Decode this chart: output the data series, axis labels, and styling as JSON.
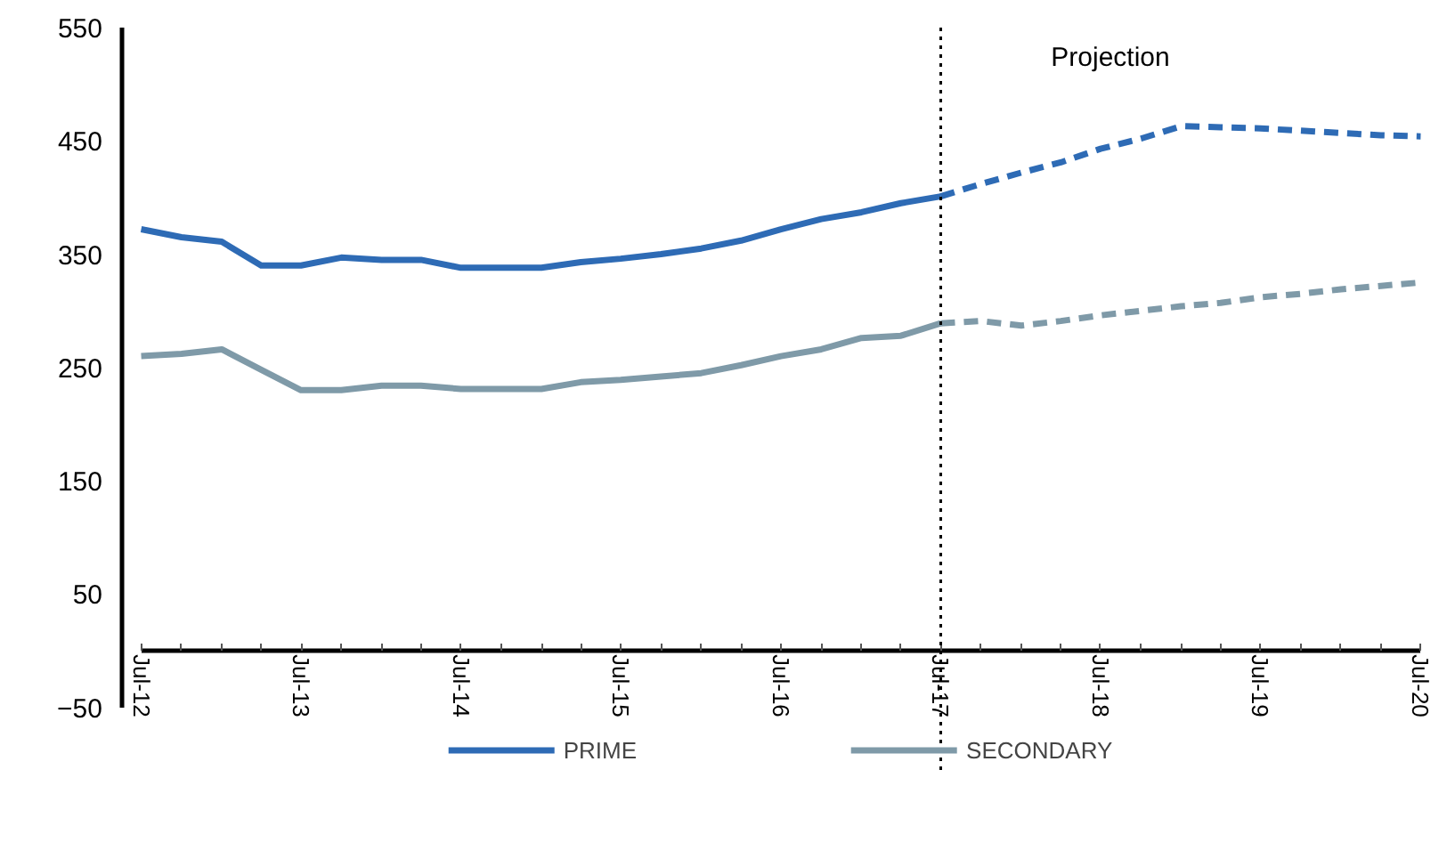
{
  "chart_data": {
    "type": "line",
    "x": [
      "2012-07",
      "2012-10",
      "2013-01",
      "2013-04",
      "2013-07",
      "2013-10",
      "2014-01",
      "2014-04",
      "2014-07",
      "2014-10",
      "2015-01",
      "2015-04",
      "2015-07",
      "2015-10",
      "2016-01",
      "2016-04",
      "2016-07",
      "2016-10",
      "2017-01",
      "2017-04",
      "2017-07"
    ],
    "series": [
      {
        "name": "PRIME",
        "color": "#2e6bb5",
        "line_style": "solid",
        "values": [
          372,
          365,
          361,
          340,
          340,
          347,
          345,
          345,
          338,
          338,
          338,
          343,
          346,
          350,
          355,
          362,
          372,
          381,
          387,
          395,
          401
        ]
      },
      {
        "name": "SECONDARY",
        "color": "#7f9aa8",
        "line_style": "solid",
        "values": [
          260,
          262,
          266,
          248,
          230,
          230,
          234,
          234,
          231,
          231,
          231,
          237,
          239,
          242,
          245,
          252,
          260,
          266,
          276,
          278,
          289
        ]
      },
      {
        "color": "#2e6bb5",
        "line_style": "dashed",
        "x": [
          "2017-07",
          "2017-10",
          "2018-01",
          "2018-04",
          "2018-07",
          "2018-10",
          "2019-01",
          "2019-04",
          "2019-07",
          "2019-10",
          "2020-01",
          "2020-04",
          "2020-07"
        ],
        "values": [
          401,
          412,
          422,
          431,
          443,
          452,
          463,
          462,
          461,
          459,
          457,
          455,
          454
        ]
      },
      {
        "color": "#7f9aa8",
        "line_style": "dashed",
        "x": [
          "2017-07",
          "2017-10",
          "2018-01",
          "2018-04",
          "2018-07",
          "2018-10",
          "2019-01",
          "2019-04",
          "2019-07",
          "2019-10",
          "2020-01",
          "2020-04",
          "2020-07"
        ],
        "values": [
          289,
          291,
          287,
          291,
          296,
          300,
          304,
          307,
          312,
          315,
          319,
          322,
          325
        ]
      }
    ],
    "ylim": [
      -50,
      550
    ],
    "yticks": [
      -50,
      50,
      150,
      250,
      350,
      450,
      550
    ],
    "xlim": [
      "2012-07",
      "2020-07"
    ],
    "xticks": [
      {
        "value": "2012-07",
        "label": "Jul-12"
      },
      {
        "value": "2012-10",
        "label": null
      },
      {
        "value": "2013-01",
        "label": null
      },
      {
        "value": "2013-04",
        "label": null
      },
      {
        "value": "2013-07",
        "label": "Jul-13"
      },
      {
        "value": "2013-10",
        "label": null
      },
      {
        "value": "2014-01",
        "label": null
      },
      {
        "value": "2014-04",
        "label": null
      },
      {
        "value": "2014-07",
        "label": "Jul-14"
      },
      {
        "value": "2014-10",
        "label": null
      },
      {
        "value": "2015-01",
        "label": null
      },
      {
        "value": "2015-04",
        "label": null
      },
      {
        "value": "2015-07",
        "label": "Jul-15"
      },
      {
        "value": "2015-10",
        "label": null
      },
      {
        "value": "2016-01",
        "label": null
      },
      {
        "value": "2016-04",
        "label": null
      },
      {
        "value": "2016-07",
        "label": "Jul-16"
      },
      {
        "value": "2016-10",
        "label": null
      },
      {
        "value": "2017-01",
        "label": null
      },
      {
        "value": "2017-04",
        "label": null
      },
      {
        "value": "2017-07",
        "label": "Jul-17"
      },
      {
        "value": "2017-10",
        "label": null
      },
      {
        "value": "2018-01",
        "label": null
      },
      {
        "value": "2018-04",
        "label": null
      },
      {
        "value": "2018-07",
        "label": "Jul-18"
      },
      {
        "value": "2018-10",
        "label": null
      },
      {
        "value": "2019-01",
        "label": null
      },
      {
        "value": "2019-04",
        "label": null
      },
      {
        "value": "2019-07",
        "label": "Jul-19"
      },
      {
        "value": "2019-10",
        "label": null
      },
      {
        "value": "2020-01",
        "label": null
      },
      {
        "value": "2020-04",
        "label": null
      },
      {
        "value": "2020-07",
        "label": "Jul-20"
      }
    ],
    "ref_lines": [
      {
        "axis": "x",
        "value": "2017-07",
        "color": "#000000",
        "line_style": "dotted"
      }
    ],
    "annotations": [
      "Projection"
    ],
    "grid": false,
    "legend": "bottom",
    "marker": "none"
  }
}
